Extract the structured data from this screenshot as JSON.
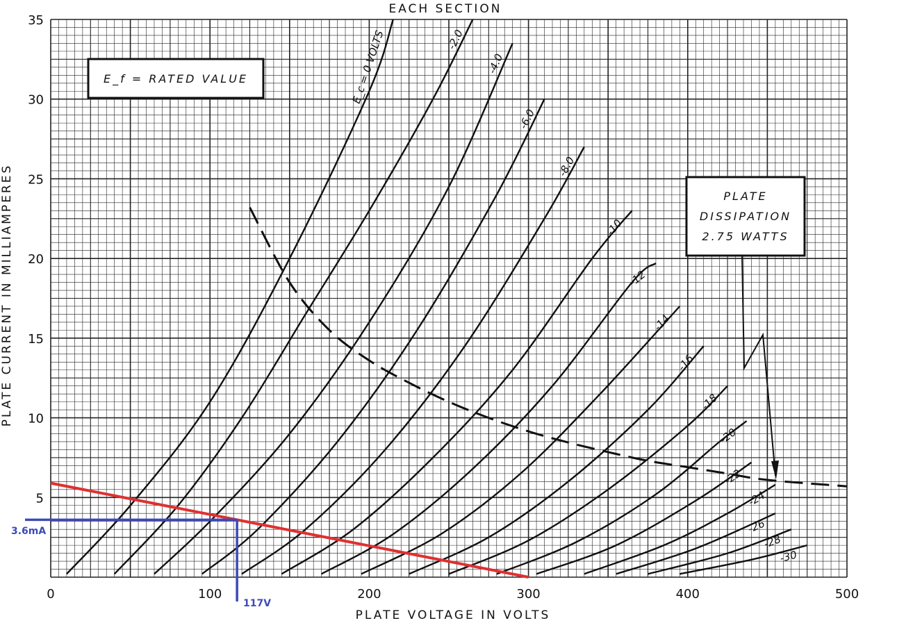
{
  "chart_data": {
    "type": "line",
    "title": "EACH SECTION",
    "xlabel": "PLATE VOLTAGE IN VOLTS",
    "ylabel": "PLATE CURRENT IN MILLIAMPERES",
    "xlim": [
      0,
      500
    ],
    "ylim": [
      0,
      35
    ],
    "x_ticks": [
      "0",
      "100",
      "200",
      "300",
      "400",
      "500"
    ],
    "y_ticks": [
      "5",
      "10",
      "15",
      "20",
      "25",
      "30",
      "35"
    ],
    "grid": true,
    "filament_note": "E_f = RATED VALUE",
    "dissipation_note": [
      "PLATE",
      "DISSIPATION",
      "2.75 WATTS"
    ],
    "series": [
      {
        "name": "Ec = 0 VOLTS",
        "label": "E_c = 0 VOLTS",
        "points": [
          [
            10,
            0.2
          ],
          [
            50,
            4.5
          ],
          [
            100,
            11
          ],
          [
            150,
            20
          ],
          [
            200,
            30.5
          ],
          [
            215,
            35
          ]
        ]
      },
      {
        "name": "-2.0",
        "points": [
          [
            40,
            0.2
          ],
          [
            80,
            4.5
          ],
          [
            120,
            10
          ],
          [
            160,
            16.5
          ],
          [
            200,
            23
          ],
          [
            240,
            30
          ],
          [
            265,
            35
          ]
        ]
      },
      {
        "name": "-4.0",
        "points": [
          [
            65,
            0.2
          ],
          [
            100,
            3.5
          ],
          [
            150,
            9
          ],
          [
            200,
            16
          ],
          [
            250,
            24.5
          ],
          [
            290,
            33.5
          ]
        ]
      },
      {
        "name": "-6.0",
        "points": [
          [
            95,
            0.2
          ],
          [
            130,
            3
          ],
          [
            180,
            8.5
          ],
          [
            230,
            15.5
          ],
          [
            280,
            24
          ],
          [
            310,
            30
          ]
        ]
      },
      {
        "name": "-8.0",
        "points": [
          [
            120,
            0.2
          ],
          [
            160,
            3
          ],
          [
            210,
            8
          ],
          [
            260,
            14.5
          ],
          [
            310,
            22.5
          ],
          [
            335,
            27
          ]
        ]
      },
      {
        "name": "-10",
        "points": [
          [
            145,
            0.2
          ],
          [
            190,
            3
          ],
          [
            240,
            7.5
          ],
          [
            290,
            13
          ],
          [
            340,
            20
          ],
          [
            365,
            23
          ]
        ]
      },
      {
        "name": "-12",
        "points": [
          [
            170,
            0.2
          ],
          [
            215,
            2.7
          ],
          [
            265,
            6.8
          ],
          [
            315,
            12
          ],
          [
            365,
            18.5
          ],
          [
            380,
            19.7
          ]
        ]
      },
      {
        "name": "-14",
        "points": [
          [
            195,
            0.2
          ],
          [
            245,
            2.7
          ],
          [
            295,
            6.5
          ],
          [
            345,
            11.5
          ],
          [
            395,
            17
          ]
        ]
      },
      {
        "name": "-16",
        "points": [
          [
            225,
            0.2
          ],
          [
            275,
            2.5
          ],
          [
            325,
            6
          ],
          [
            375,
            10.5
          ],
          [
            410,
            14.5
          ]
        ]
      },
      {
        "name": "-18",
        "points": [
          [
            250,
            0.2
          ],
          [
            300,
            2.3
          ],
          [
            350,
            5.5
          ],
          [
            400,
            9.5
          ],
          [
            425,
            12
          ]
        ]
      },
      {
        "name": "-20",
        "points": [
          [
            280,
            0.2
          ],
          [
            330,
            2.2
          ],
          [
            380,
            5.2
          ],
          [
            420,
            8.5
          ],
          [
            437,
            9.8
          ]
        ]
      },
      {
        "name": "-22",
        "points": [
          [
            305,
            0.2
          ],
          [
            355,
            2
          ],
          [
            405,
            4.8
          ],
          [
            440,
            7.2
          ]
        ]
      },
      {
        "name": "-24",
        "points": [
          [
            335,
            0.2
          ],
          [
            385,
            2
          ],
          [
            425,
            4
          ],
          [
            455,
            5.8
          ]
        ]
      },
      {
        "name": "-26",
        "points": [
          [
            355,
            0.2
          ],
          [
            405,
            1.8
          ],
          [
            455,
            4
          ]
        ]
      },
      {
        "name": "-28",
        "points": [
          [
            375,
            0.2
          ],
          [
            425,
            1.5
          ],
          [
            465,
            3
          ]
        ]
      },
      {
        "name": "-30",
        "points": [
          [
            395,
            0.2
          ],
          [
            440,
            1.1
          ],
          [
            475,
            2
          ]
        ]
      }
    ],
    "dissipation_curve": [
      [
        125,
        23.2
      ],
      [
        150,
        18.5
      ],
      [
        175,
        15.5
      ],
      [
        200,
        13.6
      ],
      [
        225,
        12.2
      ],
      [
        250,
        11
      ],
      [
        275,
        10
      ],
      [
        300,
        9.15
      ],
      [
        325,
        8.45
      ],
      [
        350,
        7.85
      ],
      [
        375,
        7.3
      ],
      [
        400,
        6.9
      ],
      [
        425,
        6.5
      ],
      [
        450,
        6.1
      ],
      [
        500,
        5.7
      ]
    ],
    "load_line": [
      [
        0,
        5.9
      ],
      [
        300,
        0
      ]
    ],
    "operating_point": {
      "x": 117,
      "y": 3.6,
      "x_label": "117V",
      "y_label": "3.6mA"
    }
  }
}
